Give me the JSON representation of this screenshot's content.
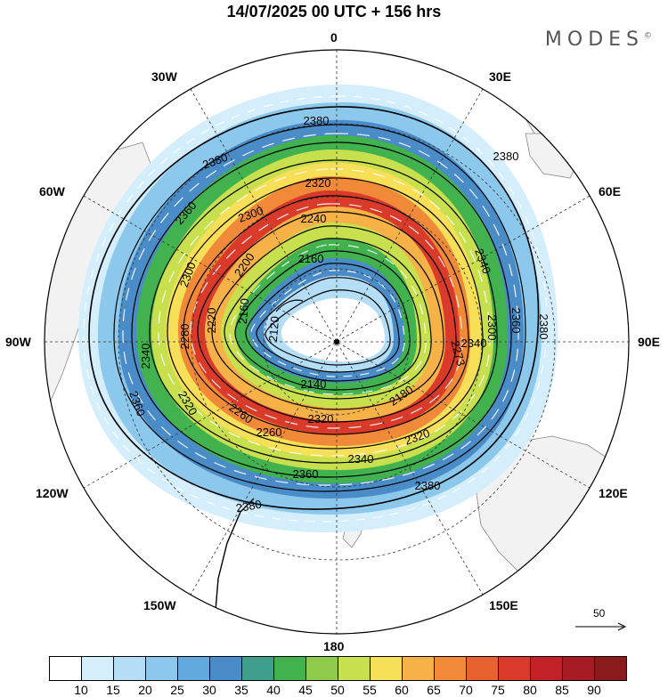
{
  "title": "14/07/2025  00 UTC  + 156 hrs",
  "brand": "MODES",
  "brand_mark": "©",
  "longitude_labels": {
    "lon_0": "0",
    "lon_30e": "30E",
    "lon_60e": "60E",
    "lon_90e": "90E",
    "lon_120e": "120E",
    "lon_150e": "150E",
    "lon_180": "180",
    "lon_150w": "150W",
    "lon_120w": "120W",
    "lon_90w": "90W",
    "lon_60w": "60W",
    "lon_30w": "30W"
  },
  "reference_vector": "50",
  "contour_labels": [
    "2380",
    "2380",
    "2360",
    "2320",
    "2300",
    "2240",
    "2160",
    "2200",
    "2300",
    "2280",
    "2220",
    "2160",
    "2120",
    "2140",
    "2340",
    "2360",
    "2340",
    "2360",
    "2320",
    "2260",
    "2260",
    "2320",
    "2180",
    "2340",
    "2320",
    "2340",
    "2360",
    "2380",
    "2380",
    "2273",
    "2300",
    "2380",
    "2380"
  ],
  "colorbar": {
    "colors": [
      "#ffffff",
      "#d4eefb",
      "#b4def6",
      "#8cc8ec",
      "#62a9de",
      "#4a8cc8",
      "#3d9f8c",
      "#41b24e",
      "#8fcb4b",
      "#c8e04d",
      "#f7df57",
      "#f6b247",
      "#f08a38",
      "#e8622f",
      "#d93a2a",
      "#c22227",
      "#a71c24",
      "#8b1a1d"
    ],
    "ticks": [
      "10",
      "15",
      "20",
      "25",
      "30",
      "35",
      "40",
      "45",
      "50",
      "55",
      "60",
      "65",
      "70",
      "75",
      "80",
      "85",
      "90"
    ]
  }
}
